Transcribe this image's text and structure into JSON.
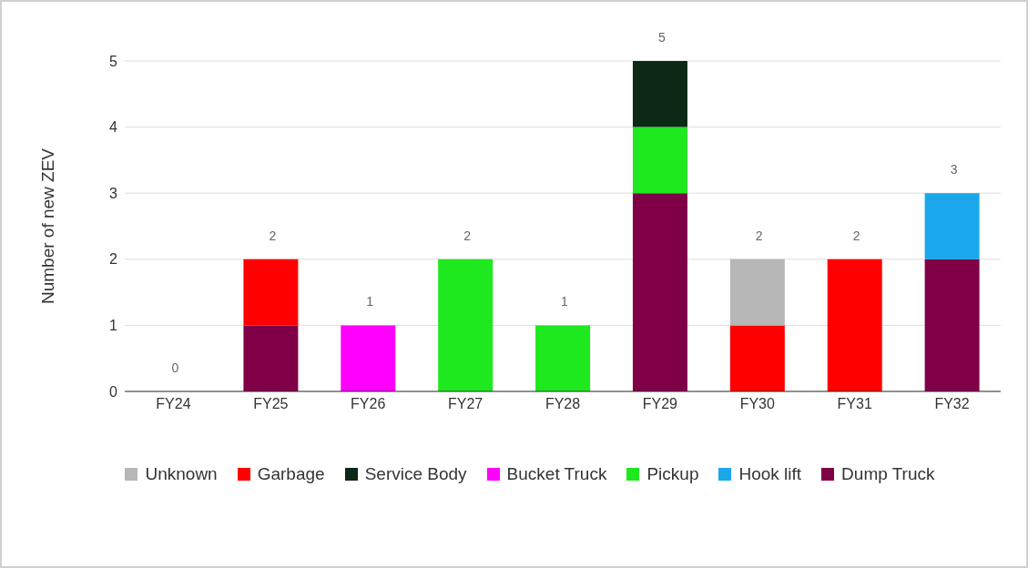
{
  "chart_data": {
    "type": "bar",
    "stacked": true,
    "ylabel": "Number of new ZEV",
    "categories": [
      "FY24",
      "FY25",
      "FY26",
      "FY27",
      "FY28",
      "FY29",
      "FY30",
      "FY31",
      "FY32"
    ],
    "series": [
      {
        "name": "Dump Truck",
        "color": "#7f0046",
        "values": [
          0,
          1,
          0,
          0,
          0,
          3,
          0,
          0,
          2
        ]
      },
      {
        "name": "Hook lift",
        "color": "#1aa7ec",
        "values": [
          0,
          0,
          0,
          0,
          0,
          0,
          0,
          0,
          1
        ]
      },
      {
        "name": "Pickup",
        "color": "#1ee81e",
        "values": [
          0,
          0,
          0,
          2,
          1,
          1,
          0,
          0,
          0
        ]
      },
      {
        "name": "Bucket Truck",
        "color": "#ff00ff",
        "values": [
          0,
          0,
          1,
          0,
          0,
          0,
          0,
          0,
          0
        ]
      },
      {
        "name": "Service Body",
        "color": "#0b2914",
        "values": [
          0,
          0,
          0,
          0,
          0,
          1,
          0,
          0,
          0
        ]
      },
      {
        "name": "Garbage",
        "color": "#ff0000",
        "values": [
          0,
          1,
          0,
          0,
          0,
          0,
          1,
          2,
          0
        ]
      },
      {
        "name": "Unknown",
        "color": "#b7b7b7",
        "values": [
          0,
          0,
          0,
          0,
          0,
          0,
          1,
          0,
          0
        ]
      }
    ],
    "totals": [
      "0",
      "2",
      "1",
      "2",
      "1",
      "5",
      "2",
      "2",
      "3"
    ],
    "ylim": [
      0,
      5
    ],
    "yticks": [
      0,
      1,
      2,
      3,
      4,
      5
    ],
    "grid": "y",
    "legend": "bottom"
  }
}
